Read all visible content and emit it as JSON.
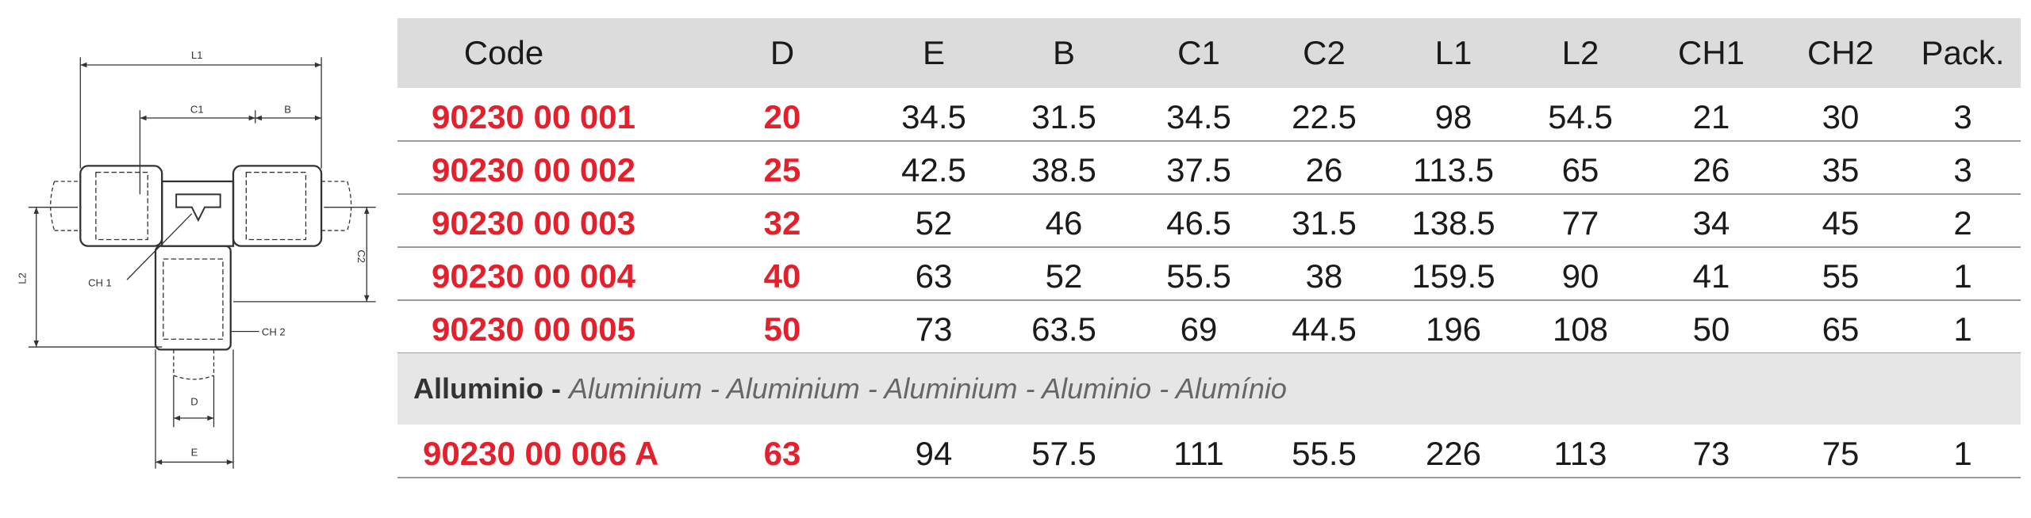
{
  "drawing": {
    "labels": {
      "l1": "L1",
      "c1": "C1",
      "b": "B",
      "l2": "L2",
      "c2": "C2",
      "ch1": "CH 1",
      "ch2": "CH 2",
      "d": "D",
      "e": "E"
    }
  },
  "table": {
    "header": [
      "Code",
      "D",
      "E",
      "B",
      "C1",
      "C2",
      "L1",
      "L2",
      "CH1",
      "CH2",
      "Pack."
    ],
    "sections": [
      {
        "rows": [
          [
            "90230 00 001",
            "20",
            "34.5",
            "31.5",
            "34.5",
            "22.5",
            "98",
            "54.5",
            "21",
            "30",
            "3"
          ],
          [
            "90230 00 002",
            "25",
            "42.5",
            "38.5",
            "37.5",
            "26",
            "113.5",
            "65",
            "26",
            "35",
            "3"
          ],
          [
            "90230 00 003",
            "32",
            "52",
            "46",
            "46.5",
            "31.5",
            "138.5",
            "77",
            "34",
            "45",
            "2"
          ],
          [
            "90230 00 004",
            "40",
            "63",
            "52",
            "55.5",
            "38",
            "159.5",
            "90",
            "41",
            "55",
            "1"
          ],
          [
            "90230 00 005",
            "50",
            "73",
            "63.5",
            "69",
            "44.5",
            "196",
            "108",
            "50",
            "65",
            "1"
          ]
        ]
      },
      {
        "heading": {
          "name": "Alluminio -",
          "translations": "Aluminium - Aluminium - Aluminium - Aluminio - Alumínio"
        },
        "rows": [
          [
            "90230 00 006 A",
            "63",
            "94",
            "57.5",
            "111",
            "55.5",
            "226",
            "113",
            "73",
            "75",
            "1"
          ]
        ]
      }
    ]
  }
}
